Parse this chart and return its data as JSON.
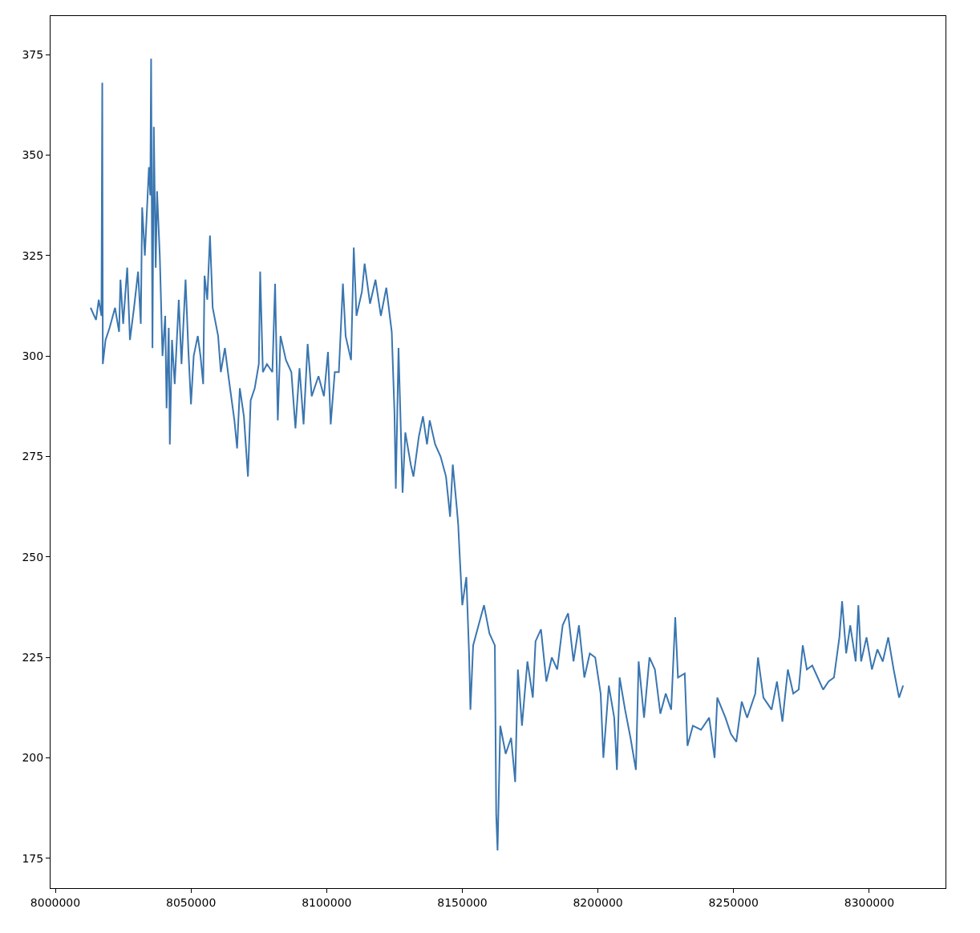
{
  "chart_data": {
    "type": "line",
    "line_style": "solid",
    "xlim": [
      7998226,
      8328116
    ],
    "ylim": [
      167.6,
      384.6
    ],
    "xticks": [
      8000000,
      8050000,
      8100000,
      8150000,
      8200000,
      8250000,
      8300000
    ],
    "yticks": [
      175,
      200,
      225,
      250,
      275,
      300,
      325,
      350,
      375
    ],
    "series": [
      {
        "color": "#3a76b0",
        "x": [
          8013000,
          8015000,
          8016000,
          8017000,
          8017300,
          8017500,
          8018500,
          8020000,
          8022000,
          8023500,
          8024000,
          8025000,
          8026500,
          8027500,
          8029000,
          8030500,
          8031500,
          8032000,
          8033000,
          8034500,
          8035000,
          8035300,
          8035800,
          8036300,
          8037000,
          8037500,
          8038500,
          8039500,
          8040500,
          8041000,
          8041800,
          8042200,
          8043000,
          8044000,
          8045500,
          8046500,
          8048000,
          8049000,
          8050000,
          8051000,
          8052500,
          8053500,
          8054500,
          8055000,
          8056000,
          8057000,
          8058000,
          8060000,
          8061000,
          8062500,
          8064000,
          8066000,
          8067000,
          8068000,
          8069500,
          8071000,
          8072000,
          8073500,
          8075000,
          8075500,
          8076500,
          8078000,
          8080000,
          8081000,
          8082000,
          8083000,
          8085000,
          8087000,
          8088500,
          8090000,
          8091500,
          8093000,
          8094500,
          8097000,
          8099000,
          8100500,
          8101500,
          8103000,
          8104500,
          8106000,
          8107000,
          8109000,
          8110000,
          8111000,
          8113000,
          8114000,
          8116000,
          8118000,
          8120000,
          8122000,
          8124000,
          8125000,
          8125500,
          8126500,
          8128000,
          8129000,
          8131000,
          8132000,
          8134000,
          8135500,
          8137000,
          8138000,
          8140000,
          8142000,
          8144000,
          8145500,
          8146500,
          8148000,
          8148500,
          8149000,
          8150000,
          8151500,
          8152500,
          8153000,
          8154000,
          8156000,
          8158000,
          8160000,
          8162000,
          8162500,
          8163000,
          8164000,
          8166000,
          8168000,
          8169500,
          8170500,
          8172000,
          8174000,
          8176000,
          8177000,
          8179000,
          8181000,
          8183000,
          8185000,
          8187000,
          8189000,
          8191000,
          8193000,
          8195000,
          8197000,
          8199000,
          8201000,
          8202000,
          8204000,
          8206000,
          8207000,
          8208000,
          8210000,
          8212000,
          8214000,
          8215000,
          8217000,
          8219000,
          8221000,
          8223000,
          8225000,
          8227000,
          8228500,
          8229500,
          8232000,
          8233000,
          8235000,
          8238000,
          8241000,
          8243000,
          8244000,
          8247000,
          8249000,
          8251000,
          8253000,
          8255000,
          8258000,
          8259000,
          8261000,
          8264000,
          8266000,
          8268000,
          8270000,
          8272000,
          8274000,
          8275500,
          8277000,
          8279000,
          8281000,
          8283000,
          8285000,
          8287000,
          8289000,
          8290000,
          8291500,
          8293000,
          8295000,
          8296000,
          8297000,
          8299000,
          8301000,
          8303000,
          8305000,
          8307000,
          8309000,
          8311000,
          8312500
        ],
        "values": [
          312,
          309,
          314,
          310,
          368,
          298,
          304,
          307,
          312,
          306,
          319,
          308,
          322,
          304,
          312,
          321,
          308,
          337,
          325,
          347,
          340,
          374,
          302,
          357,
          322,
          341,
          325,
          300,
          310,
          287,
          307,
          278,
          304,
          293,
          314,
          298,
          319,
          302,
          288,
          300,
          305,
          300,
          293,
          320,
          314,
          330,
          312,
          305,
          296,
          302,
          294,
          284,
          277,
          292,
          285,
          270,
          289,
          292,
          298,
          321,
          296,
          298,
          296,
          318,
          284,
          305,
          299,
          296,
          282,
          297,
          283,
          303,
          290,
          295,
          290,
          301,
          283,
          296,
          296,
          318,
          305,
          299,
          327,
          310,
          316,
          323,
          313,
          319,
          310,
          317,
          306,
          286,
          267,
          302,
          266,
          281,
          273,
          270,
          280,
          285,
          278,
          284,
          278,
          275,
          270,
          260,
          273,
          262,
          258,
          251,
          238,
          245,
          226,
          212,
          228,
          233,
          238,
          231,
          228,
          186,
          177,
          208,
          201,
          205,
          194,
          222,
          208,
          224,
          215,
          229,
          232,
          219,
          225,
          222,
          233,
          236,
          224,
          233,
          220,
          226,
          225,
          216,
          200,
          218,
          210,
          197,
          220,
          212,
          205,
          197,
          224,
          210,
          225,
          222,
          211,
          216,
          212,
          235,
          220,
          221,
          203,
          208,
          207,
          210,
          200,
          215,
          210,
          206,
          204,
          214,
          210,
          216,
          225,
          215,
          212,
          219,
          209,
          222,
          216,
          217,
          228,
          222,
          223,
          220,
          217,
          219,
          220,
          230,
          239,
          226,
          233,
          224,
          238,
          224,
          230,
          222,
          227,
          224,
          230,
          222,
          215,
          218
        ]
      }
    ]
  }
}
